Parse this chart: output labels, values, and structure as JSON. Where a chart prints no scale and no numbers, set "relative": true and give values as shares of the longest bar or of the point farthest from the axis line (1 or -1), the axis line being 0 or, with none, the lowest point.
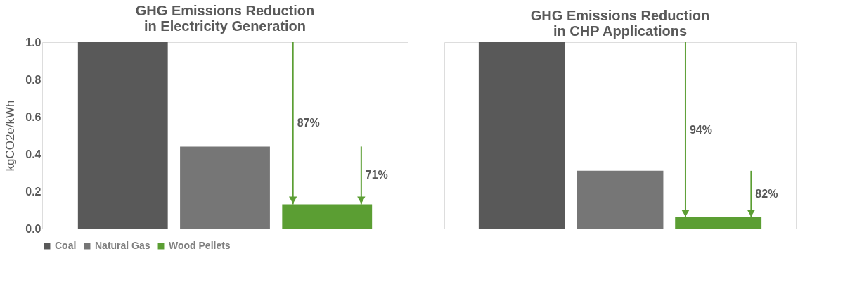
{
  "chart_data": [
    {
      "type": "bar",
      "title": "GHG Emissions Reduction\nin Electricity Generation",
      "ylabel": "kgCO2e/kWh",
      "categories": [
        null
      ],
      "series": [
        {
          "name": "Coal",
          "color": "#595959",
          "values": [
            1.0
          ]
        },
        {
          "name": "Natural Gas",
          "color": "#767676",
          "values": [
            0.44
          ]
        },
        {
          "name": "Wood Pellets",
          "color": "#5b9e33",
          "values": [
            0.13
          ]
        }
      ],
      "ylim": [
        0,
        1.0
      ],
      "yticks": [
        {
          "value": 0,
          "label": "0.0"
        },
        0.2,
        0.4,
        0.6,
        0.8,
        {
          "value": 1,
          "label": "1.0"
        }
      ],
      "annotations": [
        "87%",
        "71%"
      ],
      "grid": false,
      "legend": "bottom",
      "tick_labels": "y"
    },
    {
      "type": "bar",
      "title": "GHG Emissions Reduction\nin CHP Applications",
      "categories": [
        null
      ],
      "series": [
        {
          "color": "#595959",
          "values": [
            1.0
          ]
        },
        {
          "color": "#767676",
          "values": [
            0.31
          ]
        },
        {
          "color": "#5b9e33",
          "values": [
            0.06
          ]
        }
      ],
      "relative": true,
      "annotations": [
        "94%",
        "82%"
      ],
      "grid": false,
      "tick_labels": false
    }
  ]
}
